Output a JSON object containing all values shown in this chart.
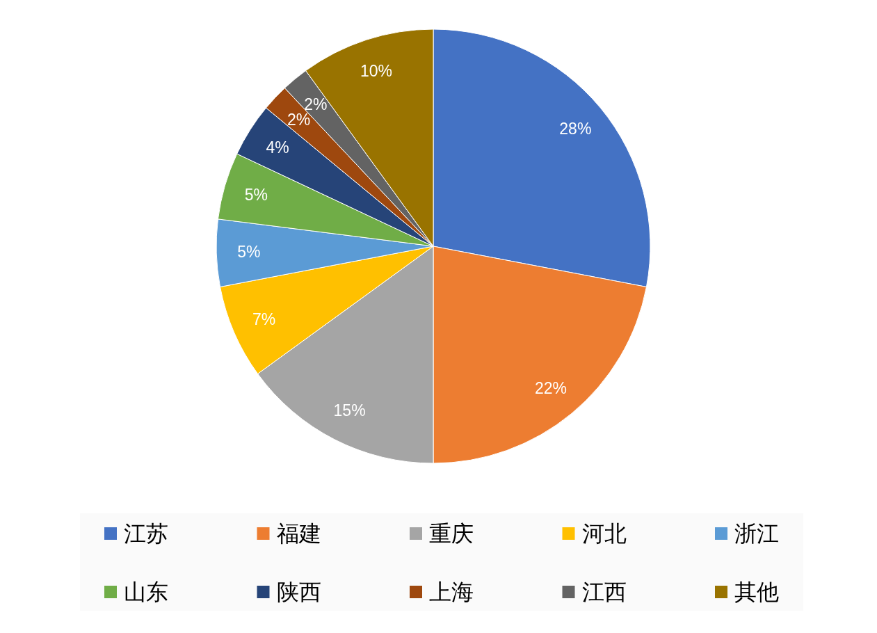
{
  "chart_data": {
    "type": "pie",
    "categories": [
      "江苏",
      "福建",
      "重庆",
      "河北",
      "浙江",
      "山东",
      "陕西",
      "上海",
      "江西",
      "其他"
    ],
    "values": [
      28,
      22,
      15,
      7,
      5,
      5,
      4,
      2,
      2,
      10
    ],
    "colors": [
      "#4472c4",
      "#ed7d31",
      "#a5a5a5",
      "#ffc000",
      "#5b9bd5",
      "#70ad47",
      "#264478",
      "#9e480e",
      "#636363",
      "#997300"
    ],
    "value_labels": [
      "28%",
      "22%",
      "15%",
      "7%",
      "5%",
      "5%",
      "4%",
      "2%",
      "2%",
      "10%"
    ],
    "legend": "bottom"
  }
}
